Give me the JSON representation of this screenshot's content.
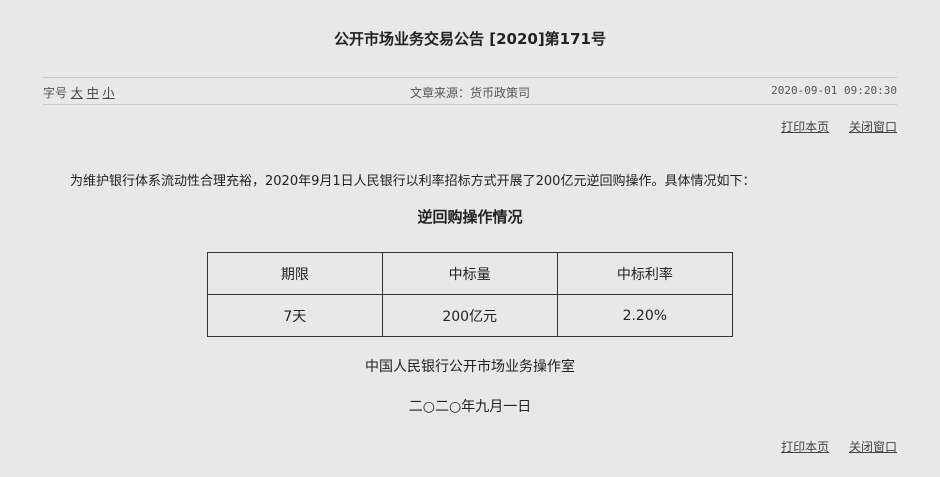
{
  "title": "公开市场业务交易公告 [2020]第171号",
  "meta": {
    "font_label": "字号",
    "font_sizes": [
      "大",
      "中",
      "小"
    ],
    "source": "文章来源：货币政策司",
    "datetime": "2020-09-01 09:20:30"
  },
  "links": {
    "print": "打印本页",
    "close": "关闭窗口"
  },
  "paragraph": "为维护银行体系流动性合理充裕，2020年9月1日人民银行以利率招标方式开展了200亿元逆回购操作。具体情况如下：",
  "table_title": "逆回购操作情况",
  "table": {
    "headers": [
      "期限",
      "中标量",
      "中标利率"
    ],
    "rows": [
      [
        "7天",
        "200亿元",
        "2.20%"
      ]
    ]
  },
  "signature": "中国人民银行公开市场业务操作室",
  "date": "二○二○年九月一日"
}
